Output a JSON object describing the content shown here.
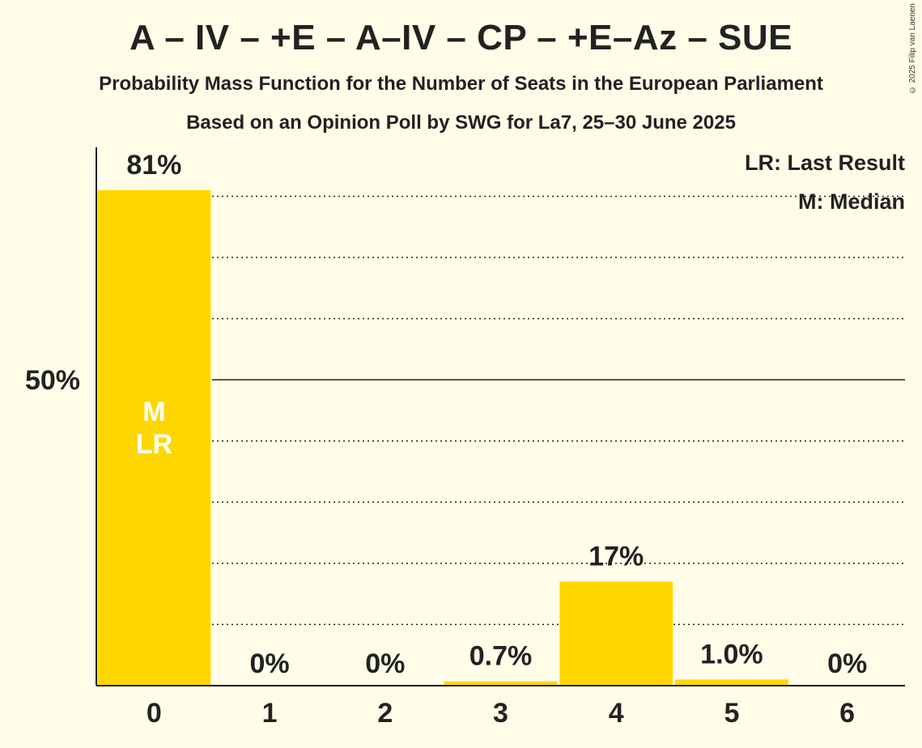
{
  "title": "A – IV – +E – A–IV – CP – +E–Az – SUE",
  "subtitle": "Probability Mass Function for the Number of Seats in the European Parliament",
  "subtitle2": "Based on an Opinion Poll by SWG for La7, 25–30 June 2025",
  "copyright": "© 2025 Filip van Laenen",
  "legend": {
    "last_result": "LR: Last Result",
    "median": "M: Median"
  },
  "colors": {
    "bar": "#FFD700",
    "background": "#FFFDE8",
    "axis": "#222222"
  },
  "chart_data": {
    "type": "bar",
    "categories": [
      "0",
      "1",
      "2",
      "3",
      "4",
      "5",
      "6"
    ],
    "values": [
      81,
      0,
      0,
      0.7,
      17,
      1.0,
      0
    ],
    "value_labels": [
      "81%",
      "0%",
      "0%",
      "0.7%",
      "17%",
      "1.0%",
      "0%"
    ],
    "ylim": [
      0,
      88
    ],
    "y_tick_label": "50%",
    "y_tick_value": 50,
    "gridlines": [
      10,
      20,
      30,
      40,
      50,
      60,
      70,
      80
    ],
    "median_category": "0",
    "last_result_category": "0",
    "bar_markers": [
      "M",
      "LR"
    ]
  }
}
